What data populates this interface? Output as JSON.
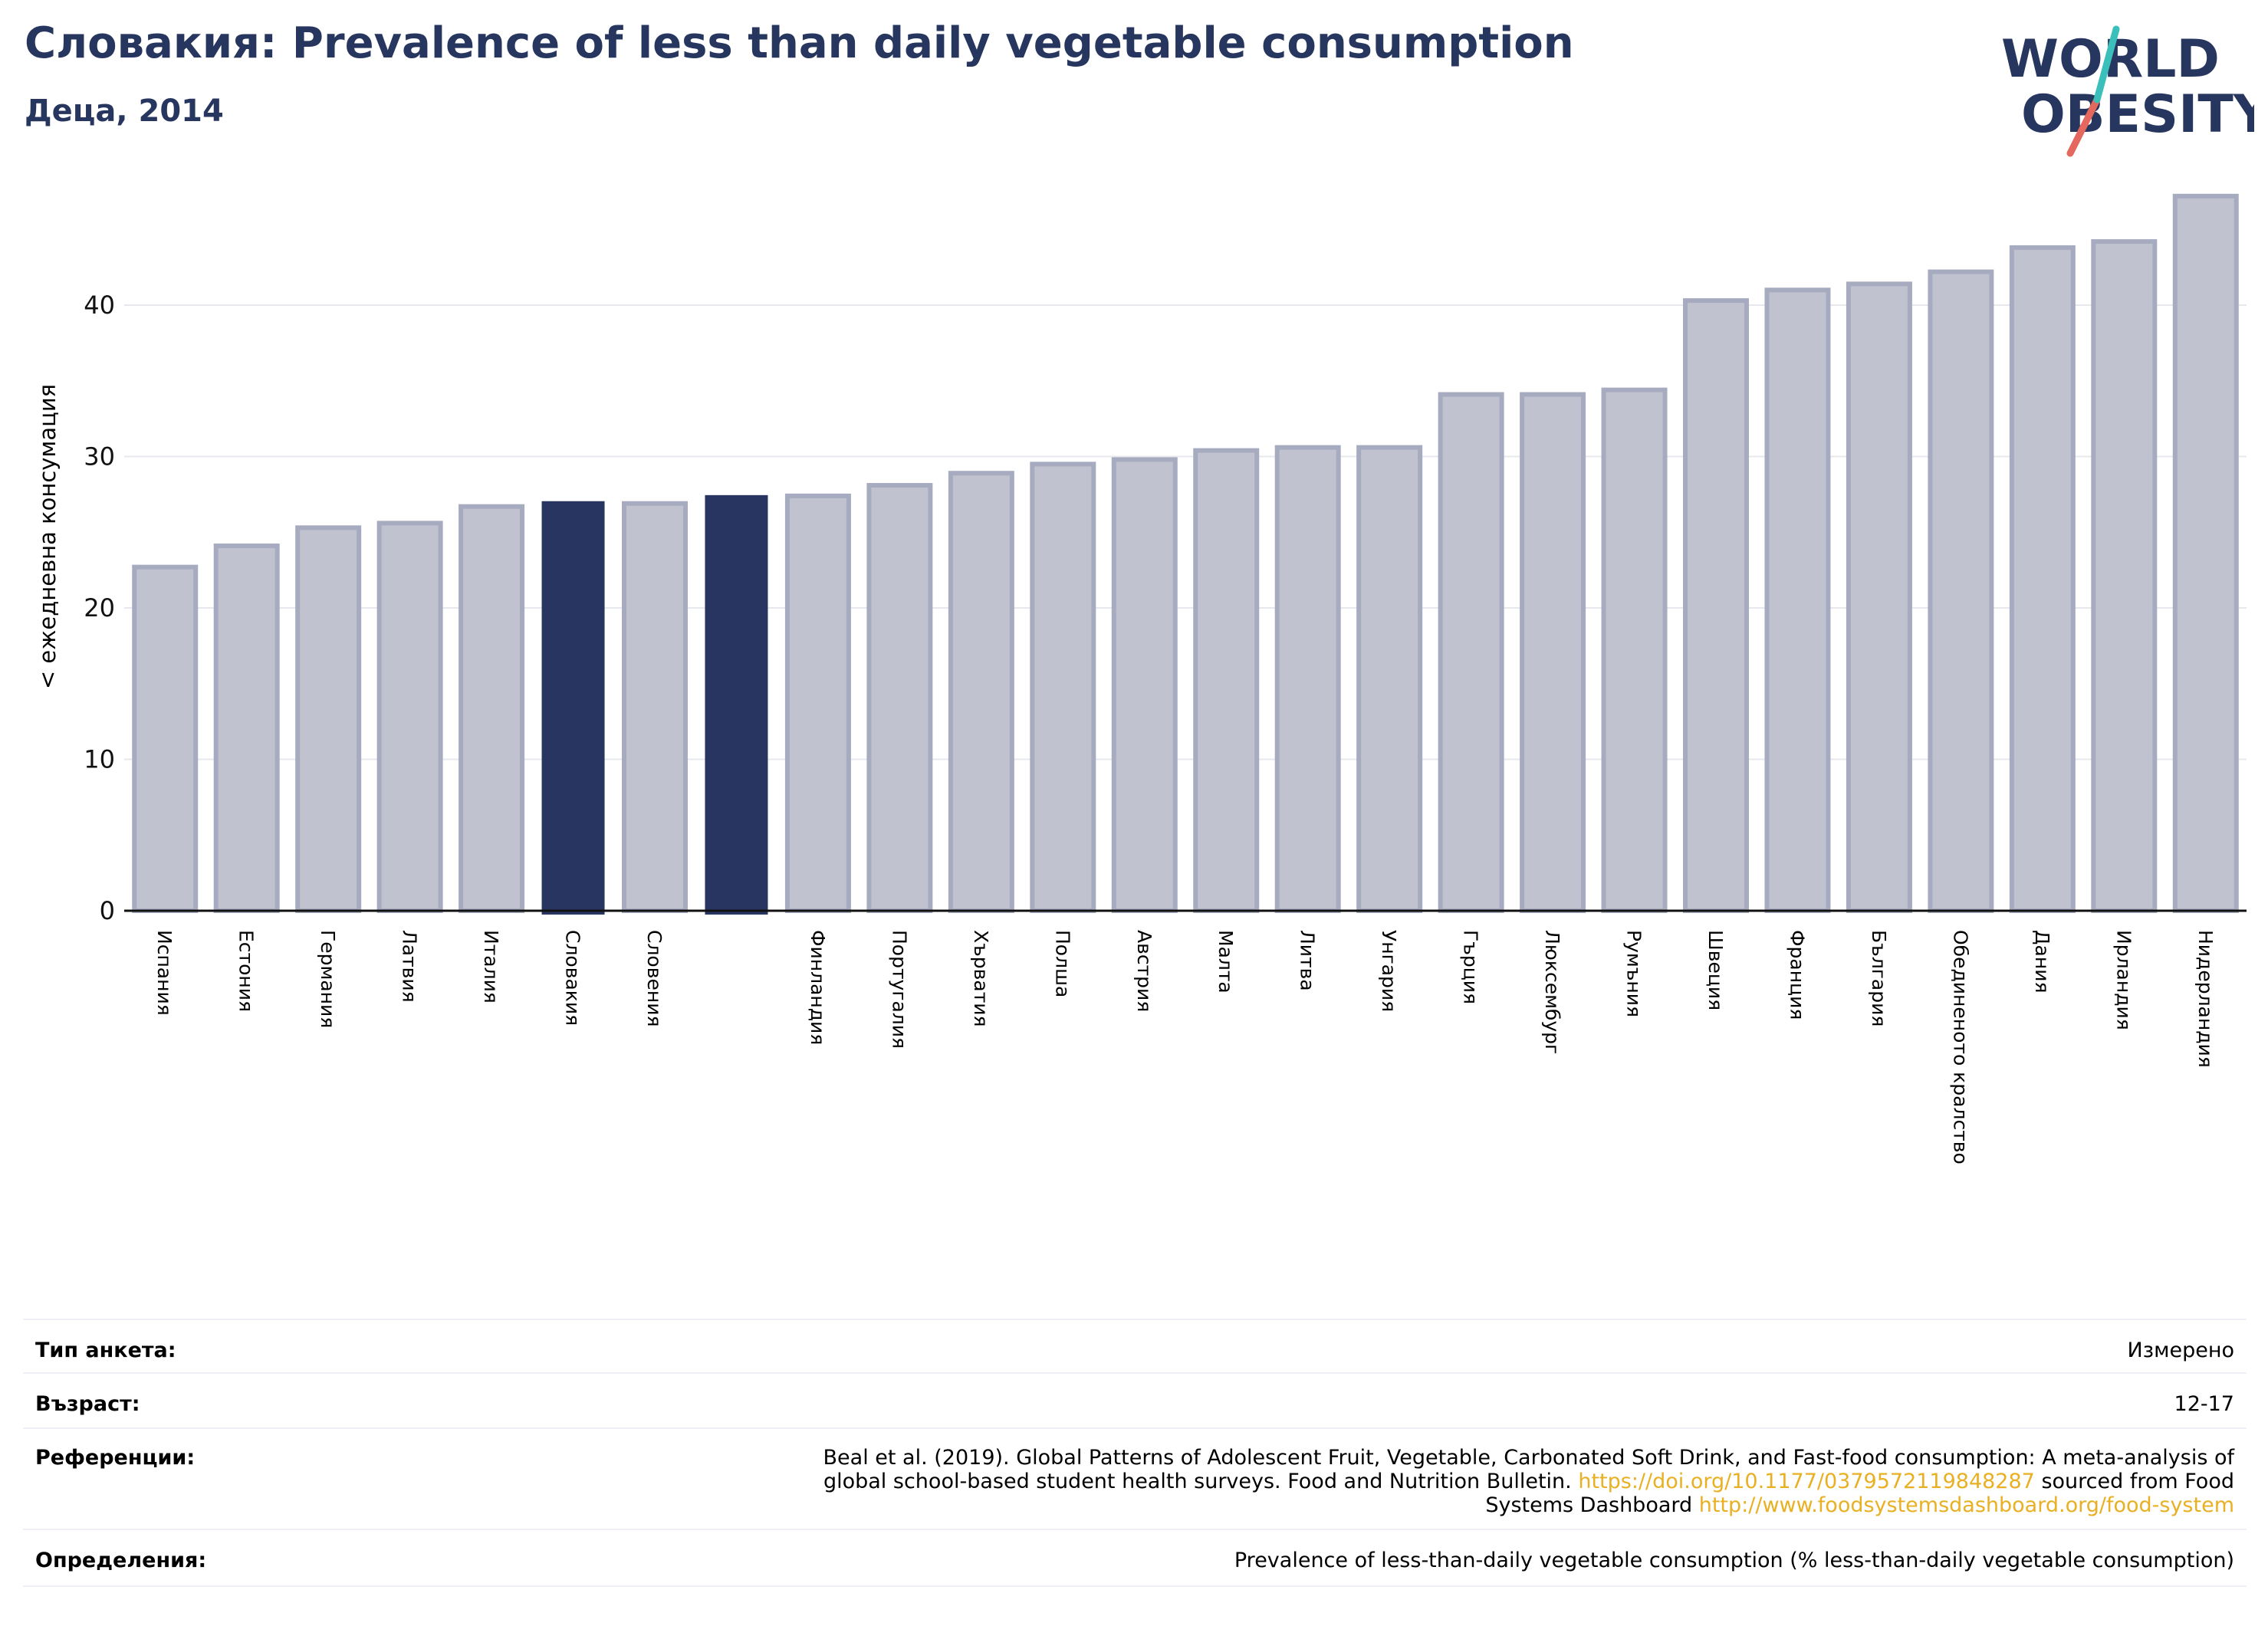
{
  "header": {
    "title": "Словакия: Prevalence of less than daily vegetable consumption",
    "subtitle": "Деца, 2014"
  },
  "logo": {
    "line1": "WORLD",
    "line2": "OBESITY"
  },
  "colors": {
    "highlight": "#283560",
    "bar_fill": "#c0c2cf",
    "bar_edge": "#a7abc0",
    "title": "#27365f",
    "link": "#e8b022"
  },
  "chart_data": {
    "type": "bar",
    "ylabel": "< ежедневна консумация",
    "ylim": [
      0,
      48
    ],
    "yticks": [
      0,
      10,
      20,
      30,
      40
    ],
    "grid": true,
    "categories": [
      "Испания",
      "Естония",
      "Германия",
      "Латвия",
      "Италия",
      "Словакия",
      "Словения",
      "",
      "Финландия",
      "Португалия",
      "Хърватия",
      "Полша",
      "Австрия",
      "Малта",
      "Литва",
      "Унгария",
      "Гърция",
      "Люксембург",
      "Румъния",
      "Швеция",
      "Франция",
      "България",
      "Обединеното кралство",
      "Дания",
      "Ирландия",
      "Нидерландия"
    ],
    "values": [
      22.7,
      24.1,
      25.3,
      25.6,
      26.7,
      27.0,
      26.9,
      27.4,
      27.4,
      28.1,
      28.9,
      29.5,
      29.8,
      30.4,
      30.6,
      30.6,
      34.1,
      34.1,
      34.4,
      40.3,
      41.0,
      41.4,
      42.2,
      43.8,
      44.2,
      47.2
    ],
    "highlighted": [
      5,
      7
    ]
  },
  "info": {
    "rows": [
      {
        "label": "Тип анкета:",
        "value": "Измерено"
      },
      {
        "label": "Възраст:",
        "value": "12-17"
      },
      {
        "label": "Референции:",
        "value_line1": "Beal et al. (2019). Global Patterns of Adolescent Fruit, Vegetable, Carbonated Soft Drink, and Fast-food consumption: A meta-analysis of",
        "value_line2_pre": "global school-based student health surveys. Food and Nutrition Bulletin. ",
        "value_link1": "https://doi.org/10.1177/0379572119848287",
        "value_line2_post": " sourced from Food",
        "value_line3_pre": "Systems Dashboard ",
        "value_link2": "http://www.foodsystemsdashboard.org/food-system"
      },
      {
        "label": "Определения:",
        "value": "Prevalence of less-than-daily vegetable consumption (% less-than-daily vegetable consumption)"
      }
    ]
  }
}
